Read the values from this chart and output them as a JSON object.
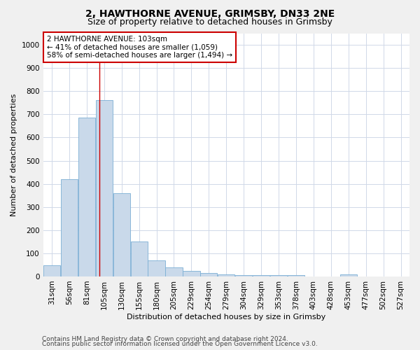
{
  "title": "2, HAWTHORNE AVENUE, GRIMSBY, DN33 2NE",
  "subtitle": "Size of property relative to detached houses in Grimsby",
  "xlabel": "Distribution of detached houses by size in Grimsby",
  "ylabel": "Number of detached properties",
  "categories": [
    "31sqm",
    "56sqm",
    "81sqm",
    "105sqm",
    "130sqm",
    "155sqm",
    "180sqm",
    "205sqm",
    "229sqm",
    "254sqm",
    "279sqm",
    "304sqm",
    "329sqm",
    "353sqm",
    "378sqm",
    "403sqm",
    "428sqm",
    "453sqm",
    "477sqm",
    "502sqm",
    "527sqm"
  ],
  "values": [
    48,
    420,
    685,
    760,
    360,
    150,
    70,
    38,
    25,
    15,
    10,
    5,
    5,
    5,
    5,
    0,
    0,
    8,
    0,
    0,
    0
  ],
  "bar_color": "#c9d9ea",
  "bar_edge_color": "#7bafd4",
  "vline_x_index": 2.72,
  "vline_color": "#cc0000",
  "annotation_text": "2 HAWTHORNE AVENUE: 103sqm\n← 41% of detached houses are smaller (1,059)\n58% of semi-detached houses are larger (1,494) →",
  "annotation_box_color": "#ffffff",
  "annotation_box_edge_color": "#cc0000",
  "ylim": [
    0,
    1050
  ],
  "yticks": [
    0,
    100,
    200,
    300,
    400,
    500,
    600,
    700,
    800,
    900,
    1000
  ],
  "footer_line1": "Contains HM Land Registry data © Crown copyright and database right 2024.",
  "footer_line2": "Contains public sector information licensed under the Open Government Licence v3.0.",
  "bg_color": "#f0f0f0",
  "plot_bg_color": "#ffffff",
  "grid_color": "#d0d8e8",
  "title_fontsize": 10,
  "subtitle_fontsize": 9,
  "axis_label_fontsize": 8,
  "tick_fontsize": 7.5,
  "annotation_fontsize": 7.5,
  "footer_fontsize": 6.5
}
